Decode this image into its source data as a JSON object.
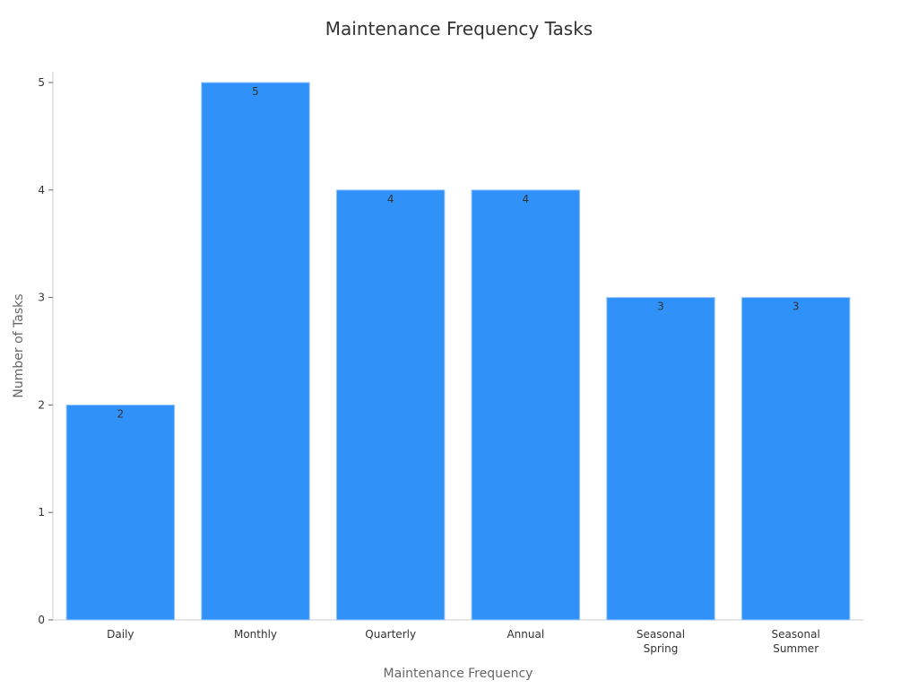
{
  "chart_data": {
    "type": "bar",
    "title": "Maintenance Frequency Tasks",
    "xlabel": "Maintenance Frequency",
    "ylabel": "Number of Tasks",
    "categories": [
      [
        "Daily"
      ],
      [
        "Monthly"
      ],
      [
        "Quarterly"
      ],
      [
        "Annual"
      ],
      [
        "Seasonal",
        "Spring"
      ],
      [
        "Seasonal",
        "Summer"
      ]
    ],
    "values": [
      2,
      5,
      4,
      4,
      3,
      3
    ],
    "ylim": [
      0,
      5.1
    ],
    "yticks": [
      0,
      1,
      2,
      3,
      4,
      5
    ],
    "grid": false,
    "bar_color": "#3092f8",
    "data_labels": true
  }
}
